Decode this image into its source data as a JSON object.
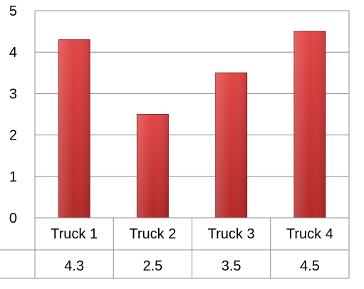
{
  "chart_data": {
    "type": "bar",
    "categories": [
      "Truck 1",
      "Truck 2",
      "Truck 3",
      "Truck 4"
    ],
    "values": [
      4.3,
      2.5,
      3.5,
      4.5
    ],
    "ylim": [
      0,
      5
    ],
    "yticks": [
      0,
      1,
      2,
      3,
      4,
      5
    ],
    "grid": true,
    "data_table": true,
    "bar_color": "#d23c3c"
  }
}
